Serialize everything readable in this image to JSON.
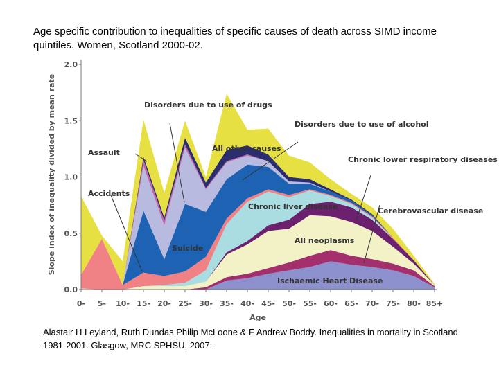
{
  "chart_data": {
    "type": "stacked-area",
    "title": "Age specific contribution to inequalities of specific causes of death across SIMD income quintiles. Women, Scotland 2000-02.",
    "source": "Alastair H Leyland, Ruth Dundas,Philip McLoone & F Andrew Boddy. Inequalities in mortality in Scotland 1981-2001. Glasgow, MRC SPHSU, 2007.",
    "x_label": "Age",
    "y_label": "Slope index of inequality divided by mean rate",
    "categories": [
      "0-",
      "5-",
      "10-",
      "15-",
      "20-",
      "25-",
      "30-",
      "35-",
      "40-",
      "45-",
      "50-",
      "55-",
      "60-",
      "65-",
      "70-",
      "75-",
      "80-",
      "85+"
    ],
    "ylim": [
      0,
      2
    ],
    "yticks": [
      {
        "value": 0,
        "label": "0.0"
      },
      {
        "value": 0.5,
        "label": "0.5"
      },
      {
        "value": 1,
        "label": "1.0"
      },
      {
        "value": 1.5,
        "label": "1.5"
      },
      {
        "value": 2,
        "label": "2.0"
      }
    ],
    "series": [
      {
        "name": "Ischaemic Heart Disease",
        "color": "#8c90cc",
        "values": [
          0,
          0,
          0,
          0,
          0,
          0,
          0,
          0.08,
          0.1,
          0.14,
          0.17,
          0.2,
          0.25,
          0.22,
          0.2,
          0.17,
          0.12,
          0.02
        ]
      },
      {
        "name": "Cerebrovascular disease",
        "color": "#a3306c",
        "values": [
          0,
          0,
          0,
          0,
          0,
          0,
          0.02,
          0.03,
          0.04,
          0.05,
          0.07,
          0.1,
          0.1,
          0.08,
          0.07,
          0.06,
          0.05,
          0.01
        ]
      },
      {
        "name": "All neoplasms",
        "color": "#f3f1c6",
        "values": [
          0.01,
          0,
          0,
          0.03,
          0.03,
          0.03,
          0.05,
          0.2,
          0.26,
          0.33,
          0.3,
          0.36,
          0.3,
          0.3,
          0.25,
          0.15,
          0.06,
          0.01
        ]
      },
      {
        "name": "Chronic lower respiratory diseases",
        "color": "#6b216d",
        "values": [
          0,
          0,
          0,
          0,
          0,
          0,
          0,
          0.02,
          0.03,
          0.05,
          0.08,
          0.1,
          0.13,
          0.13,
          0.1,
          0.07,
          0.03,
          0
        ]
      },
      {
        "name": "Chronic liver disease",
        "color": "#a9dde2",
        "values": [
          0,
          0,
          0,
          0,
          0.01,
          0.03,
          0.1,
          0.25,
          0.35,
          0.3,
          0.2,
          0.12,
          0.05,
          0.03,
          0.02,
          0,
          0,
          0
        ]
      },
      {
        "name": "Accidents",
        "color": "#f08285",
        "values": [
          0.12,
          0.45,
          0.04,
          0.12,
          0.08,
          0.1,
          0.12,
          0.05,
          0.03,
          0.02,
          0.02,
          0.01,
          0.01,
          0.01,
          0.01,
          0.01,
          0,
          0
        ]
      },
      {
        "name": "Suicide",
        "color": "#1d62b3",
        "values": [
          0,
          0,
          0,
          0.55,
          0.15,
          0.6,
          0.4,
          0.35,
          0.3,
          0.2,
          0.1,
          0.05,
          0.03,
          0.02,
          0.01,
          0,
          0,
          0
        ]
      },
      {
        "name": "Disorders due to use of drugs",
        "color": "#b9badf",
        "values": [
          0,
          0,
          0,
          0.4,
          0.3,
          0.5,
          0.2,
          0.15,
          0.08,
          0.05,
          0.02,
          0.01,
          0,
          0,
          0,
          0,
          0,
          0
        ]
      },
      {
        "name": "Assault",
        "color": "#c564a6",
        "values": [
          0,
          0,
          0,
          0.05,
          0.04,
          0.03,
          0.01,
          0.01,
          0.01,
          0,
          0,
          0,
          0,
          0,
          0,
          0,
          0,
          0
        ]
      },
      {
        "name": "Disorders due to use of alcohol",
        "color": "#2a2d6e",
        "values": [
          0,
          0,
          0,
          0.03,
          0.03,
          0.06,
          0.05,
          0.1,
          0.08,
          0.06,
          0.04,
          0.03,
          0.02,
          0.01,
          0.01,
          0,
          0,
          0
        ]
      },
      {
        "name": "All other causes",
        "color": "#e6e043",
        "values": [
          0.7,
          0.03,
          0.21,
          0.33,
          0.22,
          0.15,
          0.05,
          0.5,
          0.14,
          0.23,
          0.19,
          0.15,
          0.09,
          0.05,
          0.06,
          0.08,
          0.04,
          0.01
        ]
      }
    ]
  }
}
